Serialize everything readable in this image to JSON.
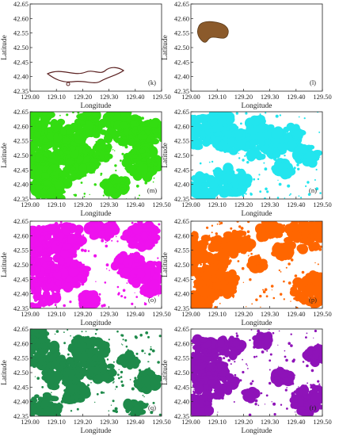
{
  "figure": {
    "xlabel": "Longitude",
    "ylabel": "Latitude",
    "x_ticks": [
      "129.00",
      "129.10",
      "129.20",
      "129.30",
      "129.40",
      "129.50"
    ],
    "y_ticks": [
      "42.35",
      "42.40",
      "42.45",
      "42.50",
      "42.55",
      "42.60",
      "42.65"
    ],
    "panels": [
      {
        "id": "k",
        "label": "(k)",
        "color": "#5a2020",
        "style": "outline"
      },
      {
        "id": "l",
        "label": "(l)",
        "color": "#8b5a2b",
        "style": "blob"
      },
      {
        "id": "m",
        "label": "(m)",
        "color": "#33dd11",
        "style": "patches"
      },
      {
        "id": "n",
        "label": "(n)",
        "color": "#22e5ee",
        "style": "patches"
      },
      {
        "id": "o",
        "label": "(o)",
        "color": "#ee11ee",
        "style": "patches"
      },
      {
        "id": "p",
        "label": "(p)",
        "color": "#ff6600",
        "style": "patches"
      },
      {
        "id": "q",
        "label": "(q)",
        "color": "#1e8a4a",
        "style": "patches"
      },
      {
        "id": "r",
        "label": "(r)",
        "color": "#8e13b8",
        "style": "patches"
      }
    ]
  }
}
